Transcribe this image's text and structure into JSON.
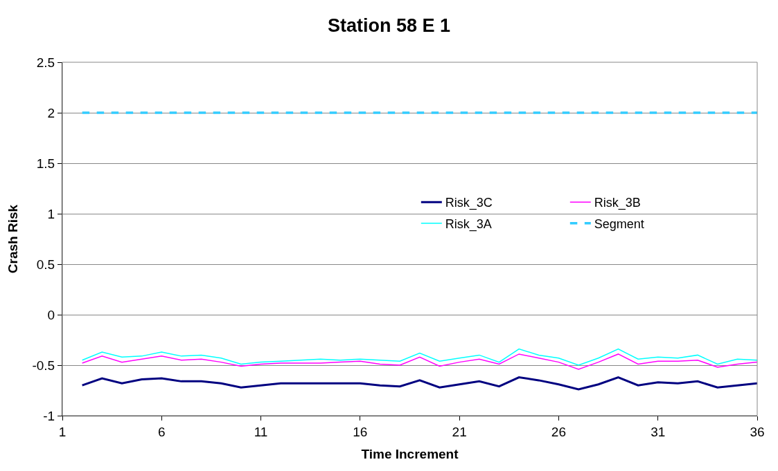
{
  "chart_data": {
    "type": "line",
    "title": "Station 58 E 1",
    "xlabel": "Time Increment",
    "ylabel": "Crash Risk",
    "x": [
      2,
      3,
      4,
      5,
      6,
      7,
      8,
      9,
      10,
      11,
      12,
      13,
      14,
      15,
      16,
      17,
      18,
      19,
      20,
      21,
      22,
      23,
      24,
      25,
      26,
      27,
      28,
      29,
      30,
      31,
      32,
      33,
      34,
      35,
      36
    ],
    "series": [
      {
        "name": "Risk_3C",
        "color": "#000080",
        "line_style": "solid",
        "values": [
          -0.7,
          -0.63,
          -0.68,
          -0.64,
          -0.63,
          -0.66,
          -0.66,
          -0.68,
          -0.72,
          -0.7,
          -0.68,
          -0.68,
          -0.68,
          -0.68,
          -0.68,
          -0.7,
          -0.71,
          -0.65,
          -0.72,
          -0.69,
          -0.66,
          -0.71,
          -0.62,
          -0.65,
          -0.69,
          -0.74,
          -0.69,
          -0.62,
          -0.7,
          -0.67,
          -0.68,
          -0.66,
          -0.72,
          -0.7,
          -0.68
        ]
      },
      {
        "name": "Risk_3B",
        "color": "#ff00ff",
        "line_style": "solid",
        "values": [
          -0.48,
          -0.41,
          -0.47,
          -0.44,
          -0.41,
          -0.45,
          -0.44,
          -0.47,
          -0.51,
          -0.49,
          -0.48,
          -0.48,
          -0.48,
          -0.47,
          -0.46,
          -0.49,
          -0.5,
          -0.42,
          -0.51,
          -0.47,
          -0.44,
          -0.49,
          -0.39,
          -0.43,
          -0.47,
          -0.54,
          -0.47,
          -0.39,
          -0.49,
          -0.46,
          -0.46,
          -0.45,
          -0.52,
          -0.49,
          -0.47
        ]
      },
      {
        "name": "Risk_3A",
        "color": "#00ffff",
        "line_style": "solid",
        "values": [
          -0.45,
          -0.37,
          -0.42,
          -0.41,
          -0.37,
          -0.41,
          -0.4,
          -0.43,
          -0.49,
          -0.47,
          -0.46,
          -0.45,
          -0.44,
          -0.45,
          -0.44,
          -0.45,
          -0.46,
          -0.38,
          -0.46,
          -0.43,
          -0.4,
          -0.47,
          -0.34,
          -0.4,
          -0.43,
          -0.5,
          -0.43,
          -0.34,
          -0.44,
          -0.42,
          -0.43,
          -0.4,
          -0.49,
          -0.44,
          -0.45
        ]
      },
      {
        "name": "Segment",
        "color": "#33ccff",
        "line_style": "dashed",
        "values": [
          2,
          2,
          2,
          2,
          2,
          2,
          2,
          2,
          2,
          2,
          2,
          2,
          2,
          2,
          2,
          2,
          2,
          2,
          2,
          2,
          2,
          2,
          2,
          2,
          2,
          2,
          2,
          2,
          2,
          2,
          2,
          2,
          2,
          2,
          2
        ]
      }
    ],
    "xlim": [
      1,
      36
    ],
    "xticks": [
      1,
      6,
      11,
      16,
      21,
      26,
      31,
      36
    ],
    "ylim": [
      -1,
      2.5
    ],
    "yticks": [
      -1,
      -0.5,
      0,
      0.5,
      1,
      1.5,
      2,
      2.5
    ],
    "grid": "y",
    "legend": "right",
    "marker": "none"
  }
}
